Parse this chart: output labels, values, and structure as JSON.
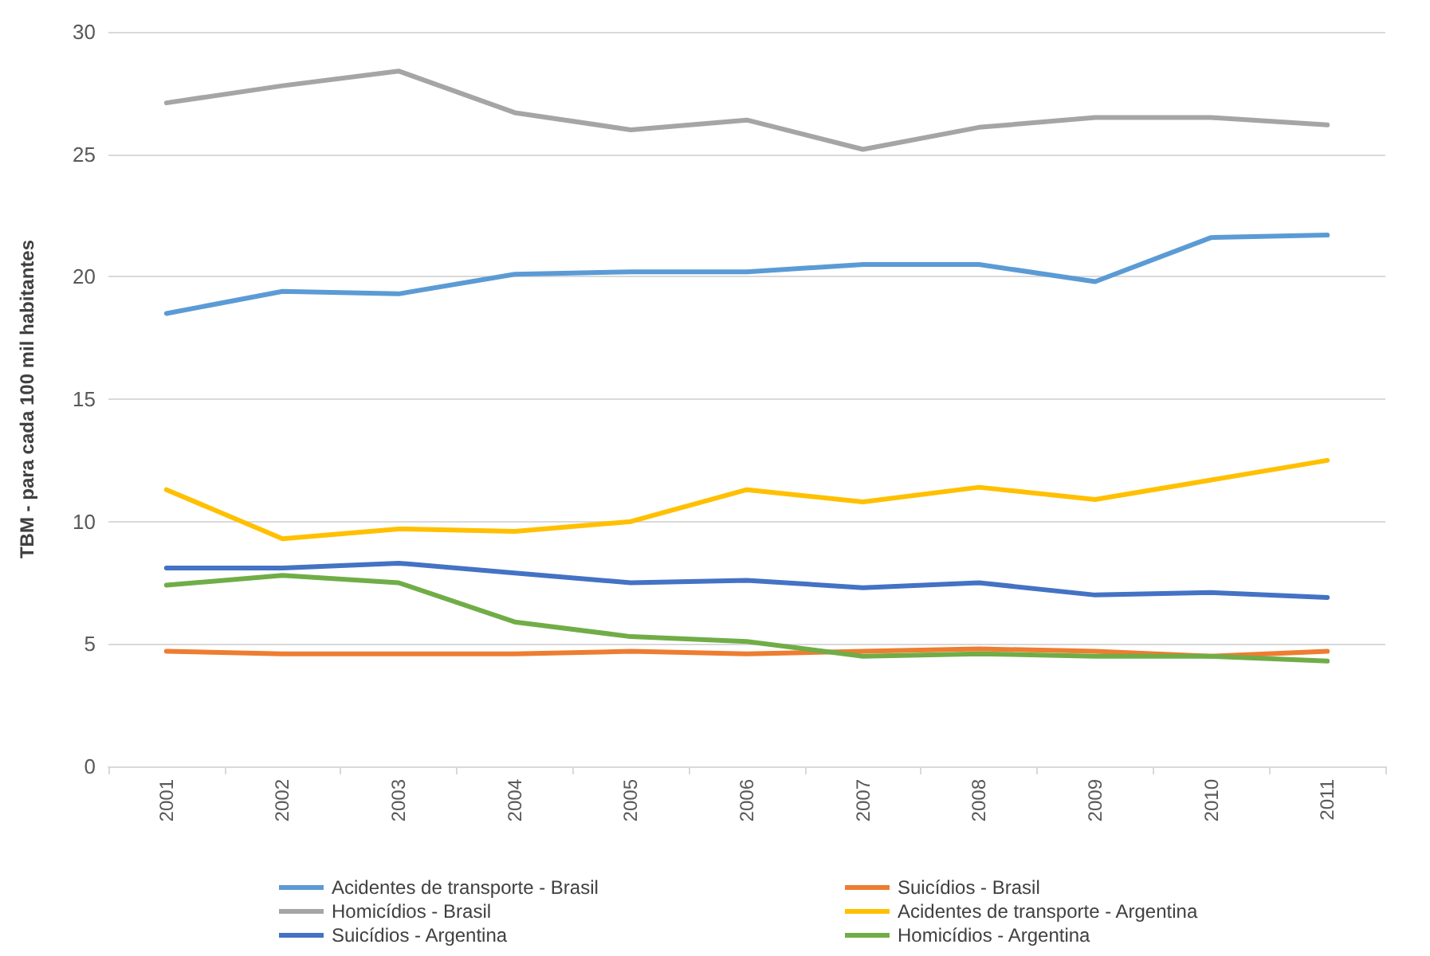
{
  "chart_data": {
    "type": "line",
    "ylabel": "TBM - para cada 100 mil habitantes",
    "categories": [
      "2001",
      "2002",
      "2003",
      "2004",
      "2005",
      "2006",
      "2007",
      "2008",
      "2009",
      "2010",
      "2011"
    ],
    "series": [
      {
        "name": "Acidentes de transporte - Brasil",
        "color": "#5b9bd5",
        "values": [
          18.5,
          19.4,
          19.3,
          20.1,
          20.2,
          20.2,
          20.5,
          20.5,
          19.8,
          21.6,
          21.7
        ]
      },
      {
        "name": "Suicídios - Brasil",
        "color": "#ed7d31",
        "values": [
          4.7,
          4.6,
          4.6,
          4.6,
          4.7,
          4.6,
          4.7,
          4.8,
          4.7,
          4.5,
          4.7
        ]
      },
      {
        "name": "Homicídios - Brasil",
        "color": "#a5a5a5",
        "values": [
          27.1,
          27.8,
          28.4,
          26.7,
          26.0,
          26.4,
          25.2,
          26.1,
          26.5,
          26.5,
          26.2
        ]
      },
      {
        "name": "Acidentes de transporte - Argentina",
        "color": "#ffc000",
        "values": [
          11.3,
          9.3,
          9.7,
          9.6,
          10.0,
          11.3,
          10.8,
          11.4,
          10.9,
          11.7,
          12.5
        ]
      },
      {
        "name": "Suicídios - Argentina",
        "color": "#4472c4",
        "values": [
          8.1,
          8.1,
          8.3,
          7.9,
          7.5,
          7.6,
          7.3,
          7.5,
          7.0,
          7.1,
          6.9
        ]
      },
      {
        "name": "Homicídios - Argentina",
        "color": "#70ad47",
        "values": [
          7.4,
          7.8,
          7.5,
          5.9,
          5.3,
          5.1,
          4.5,
          4.6,
          4.5,
          4.5,
          4.3
        ]
      }
    ],
    "ylim": [
      0,
      30
    ],
    "yticks": [
      0,
      5,
      10,
      15,
      20,
      25,
      30
    ],
    "grid": "y",
    "legend": "bottom",
    "marker": "none",
    "line_style": "solid"
  }
}
